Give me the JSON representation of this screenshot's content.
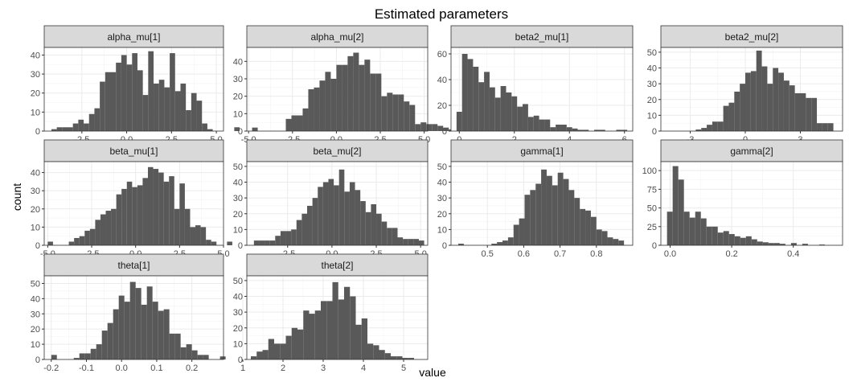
{
  "chart_data": {
    "type": "bar",
    "title": "Estimated parameters",
    "xlabel": "value",
    "ylabel": "count",
    "grid": true,
    "facet_layout": "4 columns, 3 rows",
    "colors": {
      "bar": "#595959",
      "strip_fill": "#d9d9d9",
      "strip_border": "#333333",
      "grid": "#ebebeb",
      "panel_border": "#333333"
    },
    "panels": [
      {
        "name": "alpha_mu[1]",
        "xlim": [
          -4.6,
          5.4
        ],
        "ylim": [
          0,
          44
        ],
        "xticks": [
          -2.5,
          0,
          2.5,
          5
        ],
        "xtick_labels": [
          "-2.5",
          "0.0",
          "2.5",
          "5.0"
        ],
        "yticks": [
          0,
          10,
          20,
          30,
          40
        ],
        "ytick_labels": [
          "0",
          "10",
          "20",
          "30",
          "40"
        ],
        "bins": {
          "start": -4.2,
          "width": 0.3,
          "counts": [
            1,
            2,
            2,
            2,
            4,
            6,
            4,
            9,
            12,
            26,
            31,
            31,
            36,
            40,
            35,
            41,
            32,
            19,
            42,
            25,
            27,
            23,
            41,
            21,
            25,
            11,
            20,
            16,
            4,
            1,
            0,
            0,
            0,
            0,
            2
          ]
        }
      },
      {
        "name": "alpha_mu[2]",
        "xlim": [
          -5.1,
          5.2
        ],
        "ylim": [
          0,
          48
        ],
        "xticks": [
          -5,
          -2.5,
          0,
          2.5,
          5
        ],
        "xtick_labels": [
          "-5.0",
          "-2.5",
          "0.0",
          "2.5",
          "5.0"
        ],
        "yticks": [
          0,
          10,
          20,
          30,
          40
        ],
        "ytick_labels": [
          "0",
          "10",
          "20",
          "30",
          "40"
        ],
        "bins": {
          "start": -4.8,
          "width": 0.32,
          "counts": [
            2,
            0,
            0,
            0,
            0,
            0,
            7,
            9,
            9,
            13,
            24,
            25,
            29,
            34,
            30,
            38,
            38,
            43,
            45,
            38,
            41,
            33,
            33,
            20,
            22,
            21,
            21,
            17,
            15,
            4,
            5,
            4,
            4,
            3,
            2,
            1
          ]
        }
      },
      {
        "name": "beta2_mu[1]",
        "xlim": [
          -0.3,
          6.3
        ],
        "ylim": [
          0,
          65
        ],
        "xticks": [
          0,
          2,
          4,
          6
        ],
        "xtick_labels": [
          "0",
          "2",
          "4",
          "6"
        ],
        "yticks": [
          0,
          20,
          40,
          60
        ],
        "ytick_labels": [
          "0",
          "20",
          "40",
          "60"
        ],
        "bins": {
          "start": -0.1,
          "width": 0.2,
          "counts": [
            15,
            60,
            56,
            50,
            38,
            46,
            34,
            26,
            35,
            30,
            27,
            19,
            21,
            11,
            12,
            9,
            9,
            3,
            5,
            5,
            3,
            2,
            1,
            1,
            0,
            1,
            1,
            0,
            0,
            1,
            1,
            0,
            0,
            0,
            0,
            0,
            0,
            0,
            0,
            0,
            1
          ]
        }
      },
      {
        "name": "beta2_mu[2]",
        "xlim": [
          -4.6,
          5.3
        ],
        "ylim": [
          0,
          53
        ],
        "xticks": [
          -3,
          0,
          3
        ],
        "xtick_labels": [
          "-3",
          "0",
          "3"
        ],
        "yticks": [
          0,
          10,
          20,
          30,
          40,
          50
        ],
        "ytick_labels": [
          "0",
          "10",
          "20",
          "30",
          "40",
          "50"
        ],
        "bins": {
          "start": -4.2,
          "width": 0.3,
          "counts": [
            0,
            0,
            0,
            0,
            0,
            1,
            2,
            4,
            6,
            6,
            16,
            18,
            25,
            30,
            37,
            38,
            51,
            41,
            30,
            40,
            37,
            32,
            29,
            24,
            24,
            21,
            21,
            5,
            5,
            5
          ]
        }
      },
      {
        "name": "beta_mu[1]",
        "xlim": [
          -5.2,
          5.0
        ],
        "ylim": [
          0,
          46
        ],
        "xticks": [
          -5,
          -2.5,
          0,
          2.5,
          5
        ],
        "xtick_labels": [
          "-5.0",
          "-2.5",
          "0.0",
          "2.5",
          "5.0"
        ],
        "yticks": [
          0,
          10,
          20,
          30,
          40
        ],
        "ytick_labels": [
          "0",
          "10",
          "20",
          "30",
          "40"
        ],
        "bins": {
          "start": -5.0,
          "width": 0.3,
          "counts": [
            2,
            0,
            0,
            0,
            2,
            4,
            5,
            8,
            9,
            14,
            17,
            19,
            20,
            28,
            31,
            35,
            32,
            33,
            37,
            43,
            42,
            40,
            35,
            38,
            20,
            34,
            20,
            10,
            11,
            10,
            3,
            2,
            0,
            0,
            2
          ]
        }
      },
      {
        "name": "beta_mu[2]",
        "xlim": [
          -4.8,
          5.4
        ],
        "ylim": [
          0,
          53
        ],
        "xticks": [
          -2.5,
          0,
          2.5,
          5
        ],
        "xtick_labels": [
          "-2.5",
          "0.0",
          "2.5",
          "5.0"
        ],
        "yticks": [
          0,
          10,
          20,
          30,
          40,
          50
        ],
        "ytick_labels": [
          "0",
          "10",
          "20",
          "30",
          "40",
          "50"
        ],
        "bins": {
          "start": -4.4,
          "width": 0.3,
          "counts": [
            3,
            3,
            3,
            3,
            6,
            9,
            9,
            10,
            16,
            20,
            25,
            30,
            37,
            40,
            42,
            38,
            48,
            34,
            40,
            35,
            28,
            21,
            26,
            20,
            15,
            11,
            11,
            5,
            4,
            4,
            4,
            3
          ]
        }
      },
      {
        "name": "gamma[1]",
        "xlim": [
          0.4,
          0.9
        ],
        "ylim": [
          0,
          53
        ],
        "xticks": [
          0.5,
          0.6,
          0.7,
          0.8
        ],
        "xtick_labels": [
          "0.5",
          "0.6",
          "0.7",
          "0.8"
        ],
        "yticks": [
          0,
          10,
          20,
          30,
          40,
          50
        ],
        "ytick_labels": [
          "0",
          "10",
          "20",
          "30",
          "40",
          "50"
        ],
        "bins": {
          "start": 0.42,
          "width": 0.0152,
          "counts": [
            1,
            0,
            0,
            0,
            0,
            0,
            1,
            2,
            3,
            5,
            13,
            17,
            32,
            35,
            39,
            48,
            44,
            38,
            46,
            42,
            35,
            30,
            23,
            22,
            18,
            10,
            9,
            5,
            4,
            3
          ]
        }
      },
      {
        "name": "gamma[2]",
        "xlim": [
          -0.03,
          0.56
        ],
        "ylim": [
          0,
          112
        ],
        "xticks": [
          0,
          0.2,
          0.4
        ],
        "xtick_labels": [
          "0.0",
          "0.2",
          "0.4"
        ],
        "yticks": [
          0,
          25,
          50,
          75,
          100
        ],
        "ytick_labels": [
          "0",
          "25",
          "50",
          "75",
          "100"
        ],
        "bins": {
          "start": -0.01,
          "width": 0.0183,
          "counts": [
            45,
            106,
            88,
            45,
            37,
            45,
            36,
            25,
            25,
            17,
            19,
            15,
            12,
            10,
            12,
            8,
            5,
            4,
            3,
            3,
            2,
            0,
            3,
            0,
            2,
            0,
            0,
            1,
            0,
            0
          ]
        }
      },
      {
        "name": "theta[1]",
        "xlim": [
          -0.22,
          0.29
        ],
        "ylim": [
          0,
          55
        ],
        "xticks": [
          -0.2,
          -0.1,
          0,
          0.1,
          0.2
        ],
        "xtick_labels": [
          "-0.2",
          "-0.1",
          "0.0",
          "0.1",
          "0.2"
        ],
        "yticks": [
          0,
          10,
          20,
          30,
          40,
          50
        ],
        "ytick_labels": [
          "0",
          "10",
          "20",
          "30",
          "40",
          "50"
        ],
        "bins": {
          "start": -0.2,
          "width": 0.016,
          "counts": [
            3,
            0,
            0,
            0,
            1,
            4,
            4,
            7,
            10,
            19,
            24,
            33,
            42,
            38,
            51,
            47,
            36,
            48,
            38,
            32,
            33,
            17,
            17,
            8,
            10,
            6,
            3,
            3,
            0,
            0,
            2
          ]
        }
      },
      {
        "name": "theta[2]",
        "xlim": [
          1.1,
          5.6
        ],
        "ylim": [
          0,
          53
        ],
        "xticks": [
          1,
          2,
          3,
          4,
          5
        ],
        "xtick_labels": [
          "1",
          "2",
          "3",
          "4",
          "5"
        ],
        "yticks": [
          0,
          10,
          20,
          30,
          40,
          50
        ],
        "ytick_labels": [
          "0",
          "10",
          "20",
          "30",
          "40",
          "50"
        ],
        "bins": {
          "start": 1.2,
          "width": 0.145,
          "counts": [
            2,
            5,
            6,
            13,
            10,
            10,
            15,
            20,
            19,
            31,
            29,
            31,
            37,
            37,
            49,
            38,
            46,
            40,
            22,
            26,
            10,
            9,
            6,
            4,
            2,
            2,
            1,
            1,
            0,
            0
          ]
        }
      }
    ]
  }
}
